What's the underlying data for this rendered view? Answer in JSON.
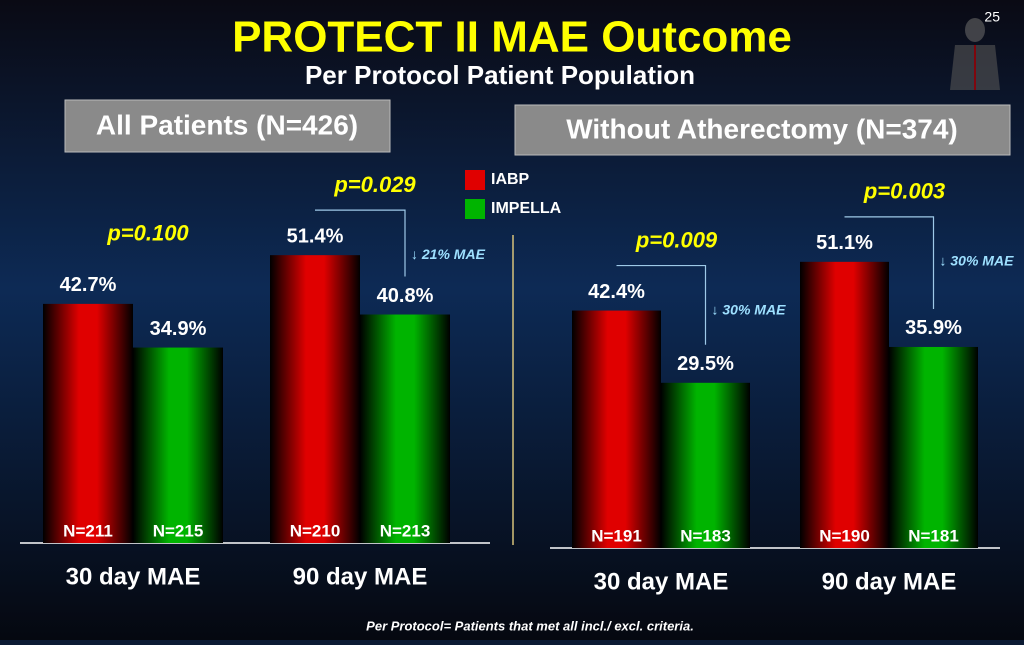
{
  "title": "PROTECT II MAE Outcome",
  "subtitle": "Per Protocol Patient Population",
  "page_number": "25",
  "footnote": "Per Protocol= Patients that met all incl./ excl. criteria.",
  "chart_data": [
    {
      "type": "bar",
      "panel_title": "All Patients (N=426)",
      "categories": [
        "30 day MAE",
        "90 day MAE"
      ],
      "series": [
        {
          "name": "IABP",
          "color": "#e00000",
          "values": [
            42.7,
            51.4
          ],
          "value_labels": [
            "42.7%",
            "51.4%"
          ],
          "n_labels": [
            "N=211",
            "N=210"
          ]
        },
        {
          "name": "IMPELLA",
          "color": "#00b400",
          "values": [
            34.9,
            40.8
          ],
          "value_labels": [
            "34.9%",
            "40.8%"
          ],
          "n_labels": [
            "N=215",
            "N=213"
          ]
        }
      ],
      "p_values": [
        "p=0.100",
        "p=0.029"
      ],
      "reductions": [
        null,
        "↓ 21% MAE"
      ]
    },
    {
      "type": "bar",
      "panel_title": "Without Atherectomy (N=374)",
      "categories": [
        "30 day MAE",
        "90 day MAE"
      ],
      "series": [
        {
          "color": "#e00000",
          "values": [
            42.4,
            51.1
          ],
          "value_labels": [
            "42.4%",
            "51.1%"
          ],
          "n_labels": [
            "N=191",
            "N=190"
          ]
        },
        {
          "color": "#00b400",
          "values": [
            29.5,
            35.9
          ],
          "value_labels": [
            "29.5%",
            "35.9%"
          ],
          "n_labels": [
            "N=183",
            "N=181"
          ]
        }
      ],
      "p_values": [
        "p=0.009",
        "p=0.003"
      ],
      "reductions": [
        "↓ 30% MAE",
        "↓ 30% MAE"
      ]
    }
  ]
}
